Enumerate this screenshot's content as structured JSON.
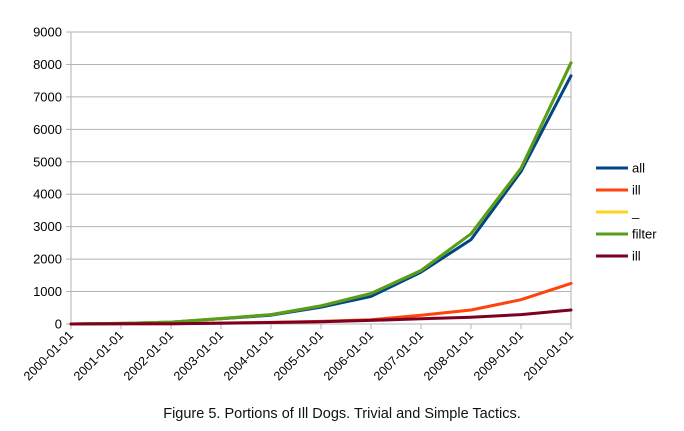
{
  "caption": "Figure 5. Portions of Ill Dogs. Trivial and Simple Tactics.",
  "chart_data": {
    "type": "line",
    "title": "",
    "xlabel": "",
    "ylabel": "",
    "x": [
      "2000-01-01",
      "2001-01-01",
      "2002-01-01",
      "2003-01-01",
      "2004-01-01",
      "2005-01-01",
      "2006-01-01",
      "2007-01-01",
      "2008-01-01",
      "2009-01-01",
      "2010-01-01"
    ],
    "ylim": [
      0,
      9000
    ],
    "yticks": [
      0,
      1000,
      2000,
      3000,
      4000,
      5000,
      6000,
      7000,
      8000,
      9000
    ],
    "grid": "horizontal",
    "legend_position": "right",
    "series": [
      {
        "name": "all",
        "color": "#004586",
        "values": [
          0,
          20,
          60,
          160,
          270,
          520,
          850,
          1600,
          2600,
          4700,
          7650
        ]
      },
      {
        "name": "ill",
        "color": "#ff420e",
        "values": [
          0,
          5,
          10,
          30,
          50,
          80,
          130,
          270,
          430,
          750,
          1250
        ]
      },
      {
        "name": "_",
        "color": "#ffd320",
        "values": [
          0,
          20,
          60,
          170,
          290,
          560,
          940,
          1650,
          2780,
          4800,
          8050
        ]
      },
      {
        "name": "filter",
        "color": "#579d1c",
        "values": [
          0,
          20,
          60,
          170,
          290,
          560,
          940,
          1650,
          2780,
          4800,
          8050
        ]
      },
      {
        "name": "ill",
        "color": "#7e0021",
        "values": [
          0,
          5,
          10,
          25,
          45,
          70,
          110,
          160,
          210,
          290,
          430
        ]
      }
    ]
  }
}
